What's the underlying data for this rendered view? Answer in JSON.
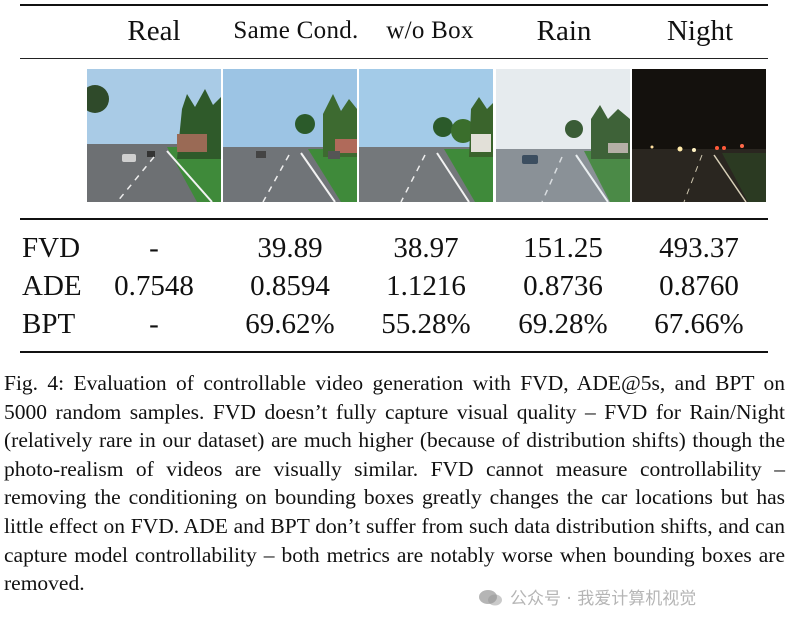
{
  "table": {
    "columns": [
      "Real",
      "Same Cond.",
      "w/o Box",
      "Rain",
      "Night"
    ],
    "rows": [
      {
        "label": "FVD",
        "values": [
          "-",
          "39.89",
          "38.97",
          "151.25",
          "493.37"
        ]
      },
      {
        "label": "ADE",
        "values": [
          "0.7548",
          "0.8594",
          "1.1216",
          "0.8736",
          "0.8760"
        ]
      },
      {
        "label": "BPT",
        "values": [
          "-",
          "69.62%",
          "55.28%",
          "69.28%",
          "67.66%"
        ]
      }
    ],
    "thumbnails": [
      "real-frame",
      "same-cond-frame",
      "without-box-frame",
      "rain-frame",
      "night-frame"
    ]
  },
  "caption": {
    "text": "Fig. 4: Evaluation of controllable video generation with FVD, ADE@5s, and BPT on 5000 random samples. FVD doesn’t fully capture visual quality – FVD for Rain/Night (relatively rare in our dataset) are much higher (because of distribution shifts) though the photo-realism of videos are visually similar. FVD cannot measure controllability – removing the conditioning on bounding boxes greatly changes the car locations but has little effect on FVD. ADE and BPT don’t suffer from such data distribution shifts, and can capture model controllability – both metrics are notably worse when bounding boxes are removed."
  },
  "watermark": {
    "text": "公众号 · 我爱计算机视觉"
  },
  "colors": {
    "sky_day": "#9cc4e4",
    "road": "#6f7276",
    "grass": "#3f8a3a",
    "night_sky": "#14110d"
  }
}
